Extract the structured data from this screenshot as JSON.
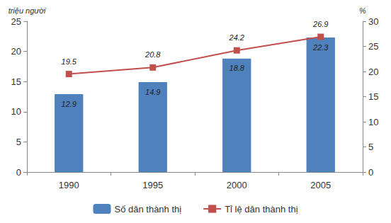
{
  "chart_data": {
    "type": "bar",
    "categories": [
      "1990",
      "1995",
      "2000",
      "2005"
    ],
    "ylabel": "triệu người",
    "y2label": "%",
    "series": [
      {
        "name": "Số dân thành thị",
        "type": "bar",
        "color": "#4f81bd",
        "values": [
          12.9,
          14.9,
          18.8,
          22.3
        ]
      },
      {
        "name": "Tỉ lệ dân thành thị",
        "type": "line",
        "color": "#c0504d",
        "marker": "square",
        "line_style": "solid",
        "axis": "y2",
        "values": [
          19.5,
          20.8,
          24.2,
          26.9
        ]
      }
    ],
    "ylim": [
      0,
      25
    ],
    "yticks": [
      0,
      5,
      10,
      15,
      20,
      25
    ],
    "y2lim": [
      0,
      30
    ],
    "y2ticks": [
      0,
      5,
      10,
      15,
      20,
      25,
      30
    ],
    "data_labels": true,
    "legend": "bottom",
    "grid": false
  }
}
